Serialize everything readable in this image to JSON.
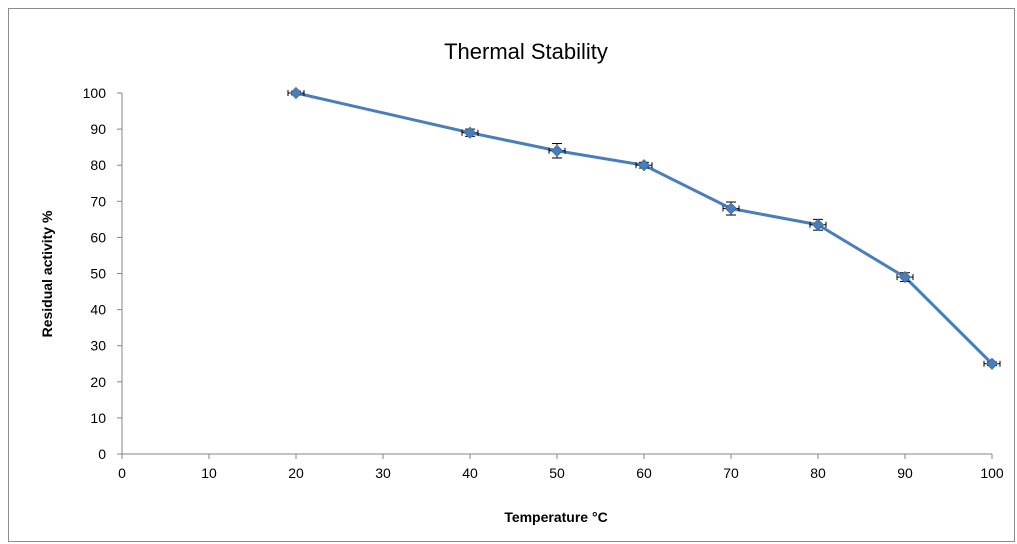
{
  "chart_data": {
    "type": "line",
    "title": "Thermal Stability",
    "xlabel": "Temperature °C",
    "ylabel": "Residual activity %",
    "xlim": [
      0,
      100
    ],
    "ylim": [
      0,
      100
    ],
    "x_ticks": [
      "0",
      "10",
      "20",
      "30",
      "40",
      "50",
      "60",
      "70",
      "80",
      "90",
      "100"
    ],
    "y_ticks": [
      "0",
      "10",
      "20",
      "30",
      "40",
      "50",
      "60",
      "70",
      "80",
      "90",
      "100"
    ],
    "grid": false,
    "legend": "none",
    "series": [
      {
        "color": "#4a7ebb",
        "marker": "diamond",
        "x": [
          20,
          40,
          50,
          60,
          70,
          80,
          90,
          100
        ],
        "y": [
          100,
          89,
          84,
          80,
          68,
          63.5,
          49,
          25
        ],
        "error": [
          0.5,
          1,
          2,
          0.8,
          1.8,
          1.5,
          1.2,
          0.5
        ]
      }
    ]
  }
}
